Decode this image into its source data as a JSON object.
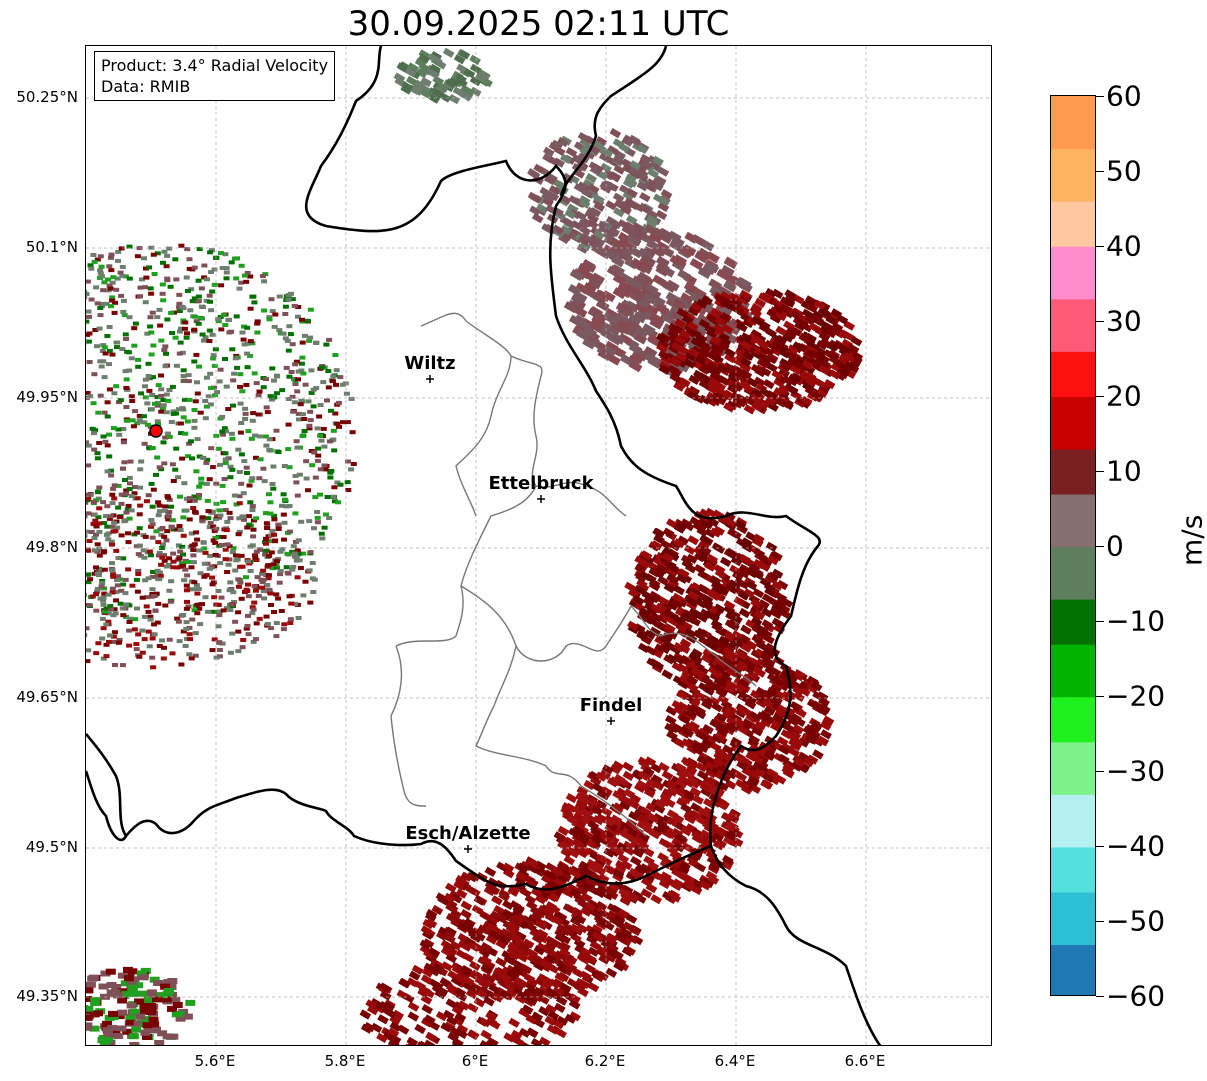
{
  "title": "30.09.2025 02:11 UTC",
  "info": {
    "product": "Product: 3.4° Radial Velocity",
    "data": "Data: RMIB"
  },
  "axes": {
    "lat_labels": [
      "50.25°N",
      "50.1°N",
      "49.95°N",
      "49.8°N",
      "49.65°N",
      "49.5°N",
      "49.35°N"
    ],
    "lon_labels": [
      "5.6°E",
      "5.8°E",
      "6°E",
      "6.2°E",
      "6.4°E",
      "6.6°E"
    ],
    "grid": true
  },
  "cities": [
    {
      "name": "Wiltz"
    },
    {
      "name": "Ettelbruck"
    },
    {
      "name": "Findel"
    },
    {
      "name": "Esch/Alzette"
    }
  ],
  "colorbar": {
    "unit": "m/s",
    "tick_labels": [
      "60",
      "50",
      "40",
      "30",
      "20",
      "10",
      "0",
      "−10",
      "−20",
      "−30",
      "−40",
      "−50",
      "−60"
    ],
    "range": [
      -60,
      60
    ],
    "colors": [
      "#1f78b4",
      "#2bc0d4",
      "#55e0e0",
      "#b4f0f0",
      "#7ef28c",
      "#1ff01f",
      "#00b400",
      "#007000",
      "#5e7e5e",
      "#887070",
      "#7a2020",
      "#c80000",
      "#ff1010",
      "#ff5a78",
      "#ff8ccc",
      "#ffc8a0",
      "#ffb464",
      "#ff9a50"
    ]
  },
  "legend_colors": {
    "inbound_strong": "#007000",
    "inbound": "#1fa01f",
    "zero": "#6e7e6e",
    "outbound_weak": "#805058",
    "outbound": "#780000",
    "outbound_strong": "#9a0a0a"
  }
}
